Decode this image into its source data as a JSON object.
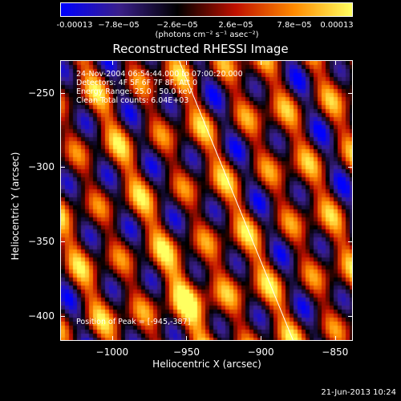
{
  "colorbar": {
    "ticks": [
      "-0.00013",
      "−7.8e−05",
      "−2.6e−05",
      "2.6e−05",
      "7.8e−05",
      "0.00013"
    ],
    "unit_label": "(photons cm⁻² s⁻¹ asec⁻²)",
    "colors": [
      "#0000ff",
      "#3a1f8a",
      "#000000",
      "#c01000",
      "#ff8a00",
      "#ffff60"
    ]
  },
  "chart_data": {
    "type": "heatmap",
    "title": "Reconstructed RHESSI Image",
    "xlabel": "Heliocentric X (arcsec)",
    "ylabel": "Heliocentric Y (arcsec)",
    "xlim": [
      -1035,
      -838
    ],
    "ylim": [
      -417,
      -228
    ],
    "x_ticks": [
      "−1000",
      "−950",
      "−900",
      "−850"
    ],
    "x_tick_values": [
      -1000,
      -950,
      -900,
      -850
    ],
    "y_ticks": [
      "−250",
      "−300",
      "−350",
      "−400"
    ],
    "y_tick_values": [
      -250,
      -300,
      -350,
      -400
    ],
    "zlim": [
      -0.00013,
      0.00013
    ],
    "peak": [
      -945,
      -387
    ],
    "limb_line": [
      [
        -955,
        -228
      ],
      [
        -878,
        -417
      ]
    ]
  },
  "info": {
    "line1": "24-Nov-2004 06:54:44.000 to 07:00:20.000",
    "line2": "Detectors: 4F 5F 6F 7F 8F, Att 0",
    "line3": "Energy Range: 25.0 - 50.0 keV",
    "line4": "Clean    Total counts: 6.04E+03",
    "peak_text": "Position of Peak = [-945,-387]"
  },
  "footer": {
    "date": "21-Jun-2013 10:24"
  }
}
